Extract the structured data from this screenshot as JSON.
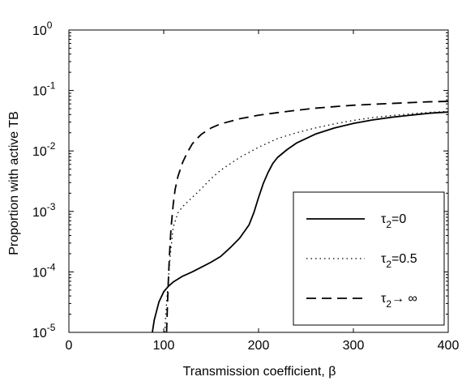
{
  "chart_data": {
    "type": "line",
    "xlabel": "Transmission coefficient, β",
    "ylabel": "Proportion with active TB",
    "xlim": [
      0,
      400
    ],
    "ylim": [
      1e-05,
      1
    ],
    "yscale": "log",
    "grid": false,
    "legend_position": "bottom-right",
    "x_ticks": [
      0,
      100,
      200,
      300,
      400
    ],
    "x_tick_labels": [
      "0",
      "100",
      "200",
      "300",
      "400"
    ],
    "y_ticks": [
      1e-05,
      0.0001,
      0.001,
      0.01,
      0.1,
      1
    ],
    "y_tick_labels": [
      {
        "base": "10",
        "exp": "-5"
      },
      {
        "base": "10",
        "exp": "-4"
      },
      {
        "base": "10",
        "exp": "-3"
      },
      {
        "base": "10",
        "exp": "-2"
      },
      {
        "base": "10",
        "exp": "-1"
      },
      {
        "base": "10",
        "exp": "0"
      }
    ],
    "series": [
      {
        "name": "τ2=0",
        "legend_label": {
          "main": "τ",
          "sub": "2",
          "rest": "=0"
        },
        "style": "solid",
        "x": [
          88,
          90,
          95,
          100,
          105,
          110,
          120,
          130,
          140,
          150,
          160,
          170,
          180,
          190,
          195,
          200,
          205,
          210,
          215,
          220,
          230,
          240,
          250,
          260,
          280,
          300,
          320,
          340,
          360,
          380,
          400
        ],
        "y": [
          1e-05,
          1.6e-05,
          3.2e-05,
          4.7e-05,
          5.8e-05,
          6.8e-05,
          8.5e-05,
          0.0001,
          0.00012,
          0.000145,
          0.00018,
          0.00025,
          0.00036,
          0.0006,
          0.00095,
          0.0017,
          0.0029,
          0.0044,
          0.0062,
          0.0078,
          0.0105,
          0.0135,
          0.016,
          0.019,
          0.024,
          0.0285,
          0.0325,
          0.036,
          0.039,
          0.042,
          0.044
        ]
      },
      {
        "name": "τ2=0.5",
        "legend_label": {
          "main": "τ",
          "sub": "2",
          "rest": "=0.5"
        },
        "style": "dotted",
        "x": [
          101,
          103,
          105,
          107,
          110,
          115,
          120,
          130,
          140,
          150,
          160,
          180,
          200,
          220,
          240,
          260,
          280,
          300,
          320,
          340,
          360,
          380,
          400
        ],
        "y": [
          1e-05,
          3e-05,
          8e-05,
          0.0002,
          0.00055,
          0.00095,
          0.0012,
          0.0017,
          0.0024,
          0.0035,
          0.0048,
          0.0078,
          0.0115,
          0.016,
          0.02,
          0.024,
          0.028,
          0.032,
          0.0355,
          0.0385,
          0.041,
          0.0435,
          0.045
        ]
      },
      {
        "name": "τ2→∞",
        "legend_label": {
          "main": "τ",
          "sub": "2",
          "rest": "→ ∞"
        },
        "style": "dashed",
        "x": [
          103,
          104,
          105,
          106,
          107,
          108,
          110,
          112,
          115,
          120,
          125,
          130,
          135,
          140,
          150,
          160,
          180,
          200,
          220,
          240,
          260,
          280,
          300,
          320,
          340,
          360,
          380,
          400
        ],
        "y": [
          1e-05,
          3e-05,
          8e-05,
          0.00018,
          0.00035,
          0.0006,
          0.0013,
          0.0023,
          0.0038,
          0.0065,
          0.0095,
          0.013,
          0.016,
          0.019,
          0.024,
          0.028,
          0.034,
          0.039,
          0.043,
          0.047,
          0.051,
          0.054,
          0.057,
          0.059,
          0.061,
          0.063,
          0.065,
          0.066
        ]
      }
    ]
  }
}
